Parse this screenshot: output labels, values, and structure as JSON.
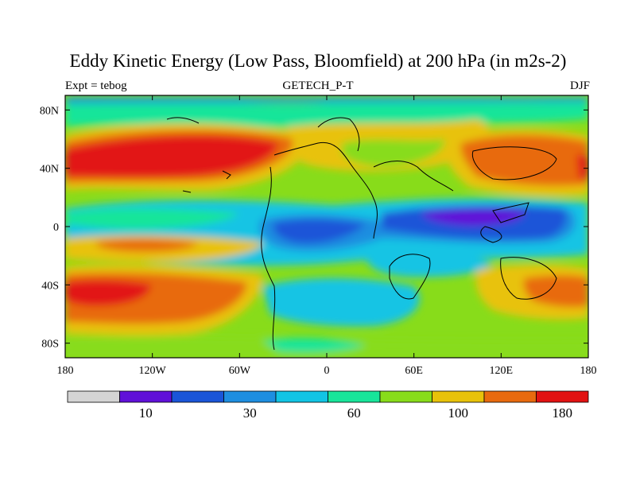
{
  "chart_data": {
    "type": "heatmap",
    "title": "Eddy Kinetic Energy (Low Pass, Bloomfield) at 200 hPa (in m2s-2)",
    "left_label": "Expt = tebog",
    "center_label": "GETECH_P-T",
    "right_label": "DJF",
    "x_ticks": [
      "180",
      "120W",
      "60W",
      "0",
      "60E",
      "120E",
      "180"
    ],
    "x_tick_values": [
      -180,
      -120,
      -60,
      0,
      60,
      120,
      180
    ],
    "y_ticks": [
      "80N",
      "40N",
      "0",
      "40S",
      "80S"
    ],
    "y_tick_values": [
      80,
      40,
      0,
      -40,
      -80
    ],
    "xlim": [
      -180,
      180
    ],
    "ylim": [
      -90,
      90
    ],
    "colorbar": {
      "colors": [
        "#d4d4d4",
        "#6010d8",
        "#1a55d8",
        "#1e8ee0",
        "#12c4e4",
        "#18e59a",
        "#88dc1a",
        "#e8c20a",
        "#e86a0e",
        "#e21212"
      ],
      "labels": [
        "10",
        "30",
        "60",
        "100",
        "180"
      ],
      "label_positions": [
        1.5,
        3.5,
        5.5,
        7.5,
        9.5
      ]
    }
  }
}
